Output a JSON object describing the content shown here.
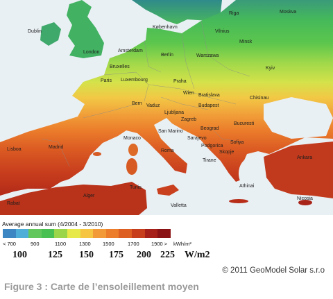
{
  "map": {
    "cities": [
      {
        "name": "Dublin"
      },
      {
        "name": "London"
      },
      {
        "name": "Amsterdam"
      },
      {
        "name": "Bruxelles"
      },
      {
        "name": "Luxembourg"
      },
      {
        "name": "Paris"
      },
      {
        "name": "Berlin"
      },
      {
        "name": "København"
      },
      {
        "name": "Riga"
      },
      {
        "name": "Moskva"
      },
      {
        "name": "Vilnius"
      },
      {
        "name": "Minsk"
      },
      {
        "name": "Warszawa"
      },
      {
        "name": "Kyiv"
      },
      {
        "name": "Praha"
      },
      {
        "name": "Wien"
      },
      {
        "name": "Bratislava"
      },
      {
        "name": "Bern"
      },
      {
        "name": "Vaduz"
      },
      {
        "name": "Chisinau"
      },
      {
        "name": "Ljubljana"
      },
      {
        "name": "Budapest"
      },
      {
        "name": "Zagreb"
      },
      {
        "name": "Bucuresti"
      },
      {
        "name": "Beograd"
      },
      {
        "name": "San Marino"
      },
      {
        "name": "Monaco"
      },
      {
        "name": "Sarajevo"
      },
      {
        "name": "Sofiya"
      },
      {
        "name": "Podgorica"
      },
      {
        "name": "Roma"
      },
      {
        "name": "Skopje"
      },
      {
        "name": "Tirane"
      },
      {
        "name": "Ankara"
      },
      {
        "name": "Athinai"
      },
      {
        "name": "Nicosia"
      },
      {
        "name": "Lisboa"
      },
      {
        "name": "Madrid"
      },
      {
        "name": "Alger"
      },
      {
        "name": "Tunis"
      },
      {
        "name": "Valletta"
      },
      {
        "name": "Rabat"
      }
    ]
  },
  "legend": {
    "title": "Average annual sum (4/2004 - 3/2010)",
    "swatch_colors": [
      "#3c86c4",
      "#4eaed8",
      "#62c85e",
      "#48c152",
      "#9bd64a",
      "#e7e84a",
      "#f6c542",
      "#f29a37",
      "#ec7d2b",
      "#dd5f22",
      "#c73e1d",
      "#a62019",
      "#8a1114"
    ],
    "kwh_labels": [
      "< 700",
      "900",
      "1100",
      "1300",
      "1500",
      "1700",
      "1900 >",
      "kWh/m²"
    ],
    "wm2_labels": [
      "100",
      "125",
      "150",
      "175",
      "200",
      "225",
      "W/m2"
    ]
  },
  "copyright": "© 2011 GeoModel Solar s.r.o",
  "caption": "Figure 3 : Carte de l’ensoleillement moyen"
}
